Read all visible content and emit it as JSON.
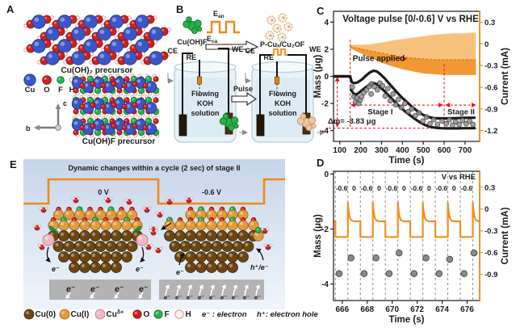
{
  "panel_a": {
    "label": "A",
    "caption_top": "Cu(OH)₂ precursor",
    "caption_bottom": "Cu(OH)F precursor",
    "legend": [
      {
        "label": "Cu",
        "color": "#3a57c9"
      },
      {
        "label": "O",
        "color": "#d11f1f"
      },
      {
        "label": "F",
        "color": "#27b24a"
      },
      {
        "label": "H",
        "color": "#ffffff"
      }
    ],
    "axes": {
      "vertical": "c",
      "horizontal": "b"
    }
  },
  "panel_b": {
    "label": "B",
    "reactant": "Cu(OH)F",
    "anodic": {
      "base": "E",
      "sub": "an"
    },
    "cathodic": {
      "base": "E",
      "sub": "ca"
    },
    "product": "P-Cuₓ/Cu₂OF",
    "pulse_label": "Pulse",
    "cells": [
      {
        "electrodes": [
          "CE",
          "RE",
          "WE"
        ],
        "solution": [
          "Flowing",
          "KOH",
          "solution"
        ]
      },
      {
        "electrodes": [
          "CE",
          "RE",
          "WE"
        ],
        "solution": [
          "Flowing",
          "KOH",
          "solution"
        ]
      }
    ]
  },
  "panel_e": {
    "label": "E",
    "title": "Dynamic changes within a cycle (2 sec) of stage II",
    "voltage_left": "0 V",
    "voltage_right": "-0.6 V",
    "electron_symbol": "e⁻",
    "hole_symbol": "h⁺/e⁻",
    "legend": [
      {
        "label": "Cu(0)",
        "color": "#6b4613"
      },
      {
        "label": "Cu(I)",
        "color": "#e09b3d"
      },
      {
        "label": "Cu",
        "sup": "δ+",
        "color": "#f0b7c4"
      },
      {
        "label": "O",
        "color": "#d11f1f"
      },
      {
        "label": "F",
        "color": "#27b24a"
      },
      {
        "label": "H",
        "color": "#fdf0f0"
      }
    ],
    "legend_electron": "e⁻ : electron",
    "legend_hole": "h⁺: electron hole"
  },
  "colors": {
    "accent_orange": "#ef8b15",
    "band_dark": "#f0901e",
    "band_light": "#fbd9a5",
    "annotation_red": "#e11b22",
    "trace_black": "#1b1b1b",
    "scatter_gray": "#909090",
    "substrate_gray": "#b3b3b3"
  },
  "chart_data": [
    {
      "id": "C",
      "panel_label": "C",
      "type": "line",
      "title": "Voltage pulse [0/-0.6] V vs RHE",
      "xlabel": "Time (s)",
      "ylabel_left": "Mass (μg)",
      "ylabel_right": "Current (mA)",
      "xlim": [
        70,
        770
      ],
      "xticks": [
        100,
        200,
        300,
        400,
        500,
        600,
        700
      ],
      "mass_lim": [
        4.8,
        -4.8
      ],
      "mass_ticks": [
        4,
        2,
        0,
        -2,
        -4
      ],
      "current_lim": [
        0.45,
        -1.35
      ],
      "current_ticks": [
        0.3,
        0,
        -0.3,
        -0.6,
        -0.9,
        -1.2
      ],
      "annotations": {
        "pulse": "Pulse applied",
        "stage1": "Stage I",
        "stage2": "Stage II",
        "delta_m": "Δm= -3.83 μg",
        "delta_m_value": -3.83,
        "pulse_start_time": 150,
        "stage_boundary_time": 600
      },
      "series": {
        "mass_initial": [
          [
            72,
            0
          ],
          [
            150,
            0
          ]
        ],
        "mass_upper": [
          [
            150,
            -0.05
          ],
          [
            158,
            -0.45
          ],
          [
            170,
            -0.5
          ],
          [
            185,
            -0.45
          ],
          [
            205,
            -0.25
          ],
          [
            225,
            0.05
          ],
          [
            245,
            0.3
          ],
          [
            262,
            0.42
          ],
          [
            278,
            0.36
          ],
          [
            295,
            0.15
          ],
          [
            315,
            -0.15
          ],
          [
            335,
            -0.5
          ],
          [
            355,
            -0.85
          ],
          [
            375,
            -1.2
          ],
          [
            400,
            -1.6
          ],
          [
            425,
            -1.95
          ],
          [
            450,
            -2.3
          ],
          [
            475,
            -2.6
          ],
          [
            500,
            -2.85
          ],
          [
            525,
            -3.0
          ],
          [
            550,
            -3.08
          ],
          [
            580,
            -3.1
          ],
          [
            620,
            -3.1
          ],
          [
            660,
            -3.08
          ],
          [
            700,
            -3.06
          ],
          [
            750,
            -3.05
          ]
        ],
        "mass_lower": [
          [
            152,
            -0.9
          ],
          [
            160,
            -1.15
          ],
          [
            172,
            -1.35
          ],
          [
            186,
            -1.28
          ],
          [
            205,
            -1.05
          ],
          [
            225,
            -0.8
          ],
          [
            245,
            -0.58
          ],
          [
            262,
            -0.5
          ],
          [
            278,
            -0.58
          ],
          [
            298,
            -0.85
          ],
          [
            318,
            -1.15
          ],
          [
            340,
            -1.5
          ],
          [
            362,
            -1.85
          ],
          [
            385,
            -2.2
          ],
          [
            410,
            -2.55
          ],
          [
            435,
            -2.85
          ],
          [
            460,
            -3.15
          ],
          [
            485,
            -3.4
          ],
          [
            510,
            -3.6
          ],
          [
            535,
            -3.73
          ],
          [
            560,
            -3.8
          ],
          [
            585,
            -3.83
          ],
          [
            620,
            -3.84
          ],
          [
            660,
            -3.84
          ],
          [
            700,
            -3.83
          ],
          [
            750,
            -3.83
          ]
        ],
        "mass_scatter": [
          [
            160,
            -0.8
          ],
          [
            168,
            -1.5
          ],
          [
            175,
            -1.9
          ],
          [
            182,
            -1.6
          ],
          [
            190,
            -2.0
          ],
          [
            198,
            -1.75
          ],
          [
            205,
            -1.5
          ],
          [
            215,
            -1.2
          ],
          [
            228,
            -1.0
          ],
          [
            240,
            -0.75
          ],
          [
            252,
            -0.55
          ],
          [
            265,
            -0.75
          ],
          [
            250,
            -1.3
          ],
          [
            280,
            -1.0
          ],
          [
            292,
            -0.5
          ],
          [
            305,
            -0.7
          ],
          [
            318,
            -1.45
          ],
          [
            330,
            -0.9
          ],
          [
            342,
            -1.8
          ],
          [
            355,
            -1.3
          ],
          [
            368,
            -2.1
          ],
          [
            380,
            -1.7
          ],
          [
            395,
            -2.3
          ],
          [
            412,
            -2.0
          ],
          [
            428,
            -2.6
          ],
          [
            445,
            -2.4
          ],
          [
            462,
            -2.9
          ],
          [
            480,
            -2.7
          ],
          [
            498,
            -3.3
          ],
          [
            515,
            -3.0
          ],
          [
            532,
            -3.5
          ],
          [
            550,
            -3.2
          ],
          [
            568,
            -3.55
          ],
          [
            590,
            -3.3
          ],
          [
            610,
            -3.5
          ],
          [
            625,
            -3.2
          ],
          [
            640,
            -3.6
          ],
          [
            655,
            -3.35
          ],
          [
            672,
            -3.55
          ],
          [
            688,
            -3.25
          ],
          [
            705,
            -3.5
          ],
          [
            722,
            -3.3
          ],
          [
            738,
            -3.55
          ]
        ],
        "current_top": [
          [
            150,
            -0.01
          ],
          [
            200,
            -0.01
          ],
          [
            250,
            0
          ],
          [
            300,
            0.02
          ],
          [
            350,
            0.05
          ],
          [
            400,
            0.07
          ],
          [
            450,
            0.09
          ],
          [
            500,
            0.11
          ],
          [
            550,
            0.13
          ],
          [
            600,
            0.14
          ],
          [
            650,
            0.15
          ],
          [
            700,
            0.15
          ],
          [
            752,
            0.16
          ]
        ],
        "current_mid": [
          [
            150,
            -0.04
          ],
          [
            200,
            -0.07
          ],
          [
            250,
            -0.1
          ],
          [
            300,
            -0.13
          ],
          [
            350,
            -0.16
          ],
          [
            400,
            -0.18
          ],
          [
            450,
            -0.2
          ],
          [
            500,
            -0.21
          ],
          [
            550,
            -0.22
          ],
          [
            600,
            -0.22
          ],
          [
            650,
            -0.22
          ],
          [
            700,
            -0.22
          ],
          [
            752,
            -0.22
          ]
        ],
        "current_bottom": [
          [
            150,
            -0.06
          ],
          [
            200,
            -0.13
          ],
          [
            250,
            -0.2
          ],
          [
            300,
            -0.26
          ],
          [
            350,
            -0.31
          ],
          [
            400,
            -0.35
          ],
          [
            450,
            -0.38
          ],
          [
            500,
            -0.41
          ],
          [
            550,
            -0.42
          ],
          [
            600,
            -0.43
          ],
          [
            650,
            -0.43
          ],
          [
            700,
            -0.43
          ],
          [
            752,
            -0.43
          ]
        ]
      }
    },
    {
      "id": "D",
      "panel_label": "D",
      "type": "line",
      "xlabel": "Time (s)",
      "ylabel_left": "Mass (μg)",
      "ylabel_right": "Current (mA)",
      "legend_note": "V vs RHE",
      "xlim": [
        665.3,
        677.0
      ],
      "xticks": [
        666,
        668,
        670,
        672,
        674,
        676
      ],
      "mass_lim": [
        0.1,
        -4.6
      ],
      "mass_ticks": [
        0,
        -2,
        -4
      ],
      "current_lim": [
        0.52,
        -1.26
      ],
      "current_ticks": [
        0.3,
        0,
        -0.3,
        -0.6,
        -0.9
      ],
      "phase_start": 665.45,
      "phase_seconds": 1,
      "phase_labels": [
        "-0.6",
        "0",
        "-0.6",
        "0",
        "-0.6",
        "0",
        "-0.6",
        "0",
        "-0.6",
        "0",
        "-0.6"
      ],
      "wave": {
        "low_level": -0.385,
        "spike_peak": 0.09,
        "settle_level": -0.17
      },
      "mass_dots": [
        [
          665.75,
          -3.62
        ],
        [
          666.7,
          -3.05
        ],
        [
          667.75,
          -3.62
        ],
        [
          668.7,
          -3.05
        ],
        [
          669.75,
          -3.62
        ],
        [
          670.55,
          -2.87
        ],
        [
          671.75,
          -3.62
        ],
        [
          672.7,
          -3.05
        ],
        [
          673.75,
          -3.62
        ],
        [
          674.6,
          -3.1
        ],
        [
          675.75,
          -3.62
        ],
        [
          676.55,
          -2.87
        ]
      ]
    }
  ]
}
